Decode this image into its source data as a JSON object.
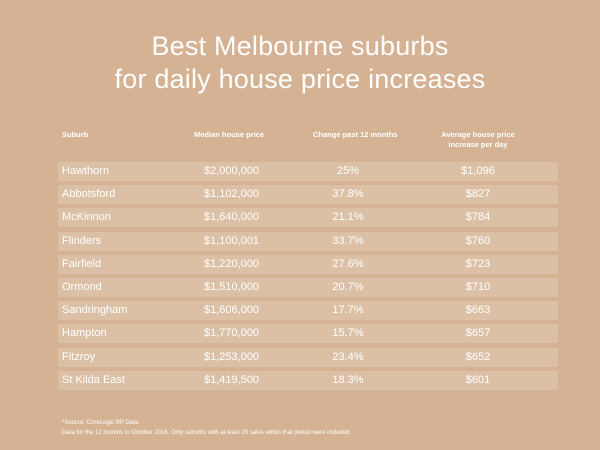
{
  "title": {
    "line1": "Best Melbourne suburbs",
    "line2": "for daily house price increases"
  },
  "chart_data": {
    "type": "table",
    "title": "Best Melbourne suburbs for daily house price increases",
    "columns": [
      "Suburb",
      "Median house price",
      "Change past 12 months",
      "Average house price increase per day"
    ],
    "header_lines": {
      "suburb": "Suburb",
      "median": "Median house price",
      "change": "Change past 12 months",
      "avg_line1": "Average house price",
      "avg_line2": "increase per day"
    },
    "rows": [
      {
        "suburb": "Hawthorn",
        "median": "$2,000,000",
        "change": "25%",
        "avg": "$1,096"
      },
      {
        "suburb": "Abbotsford",
        "median": "$1,102,000",
        "change": "37.8%",
        "avg": "$827"
      },
      {
        "suburb": "McKinnon",
        "median": "$1,640,000",
        "change": "21.1%",
        "avg": "$784"
      },
      {
        "suburb": "Flinders",
        "median": "$1,100,001",
        "change": "33.7%",
        "avg": "$760"
      },
      {
        "suburb": "Fairfield",
        "median": "$1,220,000",
        "change": "27.6%",
        "avg": "$723"
      },
      {
        "suburb": "Ormond",
        "median": "$1,510,000",
        "change": "20.7%",
        "avg": "$710"
      },
      {
        "suburb": "Sandringham",
        "median": "$1,606,000",
        "change": "17.7%",
        "avg": "$663"
      },
      {
        "suburb": "Hampton",
        "median": "$1,770,000",
        "change": "15.7%",
        "avg": "$657"
      },
      {
        "suburb": "Fitzroy",
        "median": "$1,253,000",
        "change": "23.4%",
        "avg": "$652"
      },
      {
        "suburb": "St Kilda East",
        "median": "$1,419,500",
        "change": "18.3%",
        "avg": "$601"
      }
    ]
  },
  "footer": {
    "source": "*Source: CoreLogic RP Data",
    "note": "Data for the 12 months to October 2016. Only suburbs with at least 20 sales within that period were included."
  },
  "colors": {
    "background": "#d4b293",
    "row_band": "#dcc0a6",
    "text": "#ffffff"
  }
}
